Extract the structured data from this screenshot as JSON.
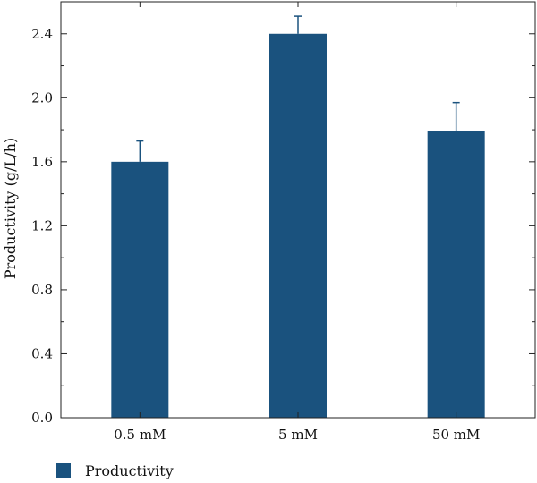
{
  "chart_data": {
    "type": "bar",
    "categories": [
      "0.5 mM",
      "5 mM",
      "50 mM"
    ],
    "series": [
      {
        "name": "Productivity",
        "values": [
          1.6,
          2.4,
          1.79
        ],
        "error_plus": [
          0.13,
          0.11,
          0.18
        ],
        "color": "#1a527e"
      }
    ],
    "title": "",
    "xlabel": "",
    "ylabel": "Productivity (g/L/h)",
    "ylim": [
      0,
      2.6
    ],
    "yticks": [
      0.0,
      0.4,
      0.8,
      1.2,
      1.6,
      2.0,
      2.4
    ],
    "ytick_labels": [
      "0.0",
      "0.4",
      "0.8",
      "1.2",
      "1.6",
      "2.0",
      "2.4"
    ],
    "minor_ytick_step": 0.2,
    "grid": false,
    "legend_position": "bottom-left"
  }
}
